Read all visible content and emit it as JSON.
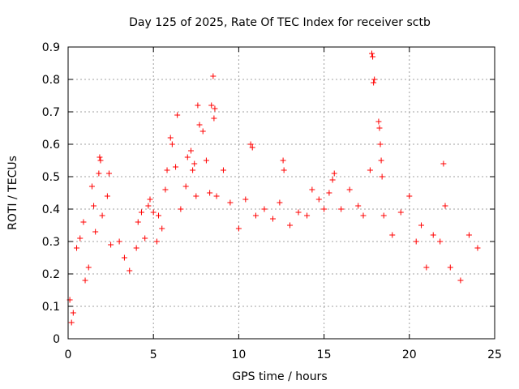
{
  "chart_data": {
    "type": "scatter",
    "title": "Day 125 of 2025, Rate Of TEC Index for receiver sctb",
    "xlabel": "GPS time / hours",
    "ylabel": "ROTI / TECUs",
    "xlim": [
      0,
      25
    ],
    "ylim": [
      0,
      0.9
    ],
    "xticks": [
      "0",
      "5",
      "10",
      "15",
      "20",
      "25"
    ],
    "yticks": [
      "0",
      "0.1",
      "0.2",
      "0.3",
      "0.4",
      "0.5",
      "0.6",
      "0.7",
      "0.8",
      "0.9"
    ],
    "grid": true,
    "marker": "+",
    "color": "#ff0000",
    "series": [
      {
        "points": [
          [
            0.1,
            0.12
          ],
          [
            0.2,
            0.05
          ],
          [
            0.3,
            0.08
          ],
          [
            0.5,
            0.28
          ],
          [
            0.7,
            0.31
          ],
          [
            0.9,
            0.36
          ],
          [
            1.0,
            0.18
          ],
          [
            1.2,
            0.22
          ],
          [
            1.4,
            0.47
          ],
          [
            1.5,
            0.41
          ],
          [
            1.6,
            0.33
          ],
          [
            1.8,
            0.51
          ],
          [
            1.85,
            0.56
          ],
          [
            1.9,
            0.55
          ],
          [
            2.0,
            0.38
          ],
          [
            2.3,
            0.44
          ],
          [
            2.4,
            0.51
          ],
          [
            2.5,
            0.29
          ],
          [
            3.0,
            0.3
          ],
          [
            3.3,
            0.25
          ],
          [
            3.6,
            0.21
          ],
          [
            4.0,
            0.28
          ],
          [
            4.1,
            0.36
          ],
          [
            4.3,
            0.39
          ],
          [
            4.5,
            0.31
          ],
          [
            4.7,
            0.41
          ],
          [
            4.8,
            0.43
          ],
          [
            5.0,
            0.39
          ],
          [
            5.2,
            0.3
          ],
          [
            5.3,
            0.38
          ],
          [
            5.5,
            0.34
          ],
          [
            5.7,
            0.46
          ],
          [
            5.8,
            0.52
          ],
          [
            6.0,
            0.62
          ],
          [
            6.1,
            0.6
          ],
          [
            6.3,
            0.53
          ],
          [
            6.4,
            0.69
          ],
          [
            6.6,
            0.4
          ],
          [
            6.9,
            0.47
          ],
          [
            7.0,
            0.56
          ],
          [
            7.2,
            0.58
          ],
          [
            7.3,
            0.52
          ],
          [
            7.4,
            0.54
          ],
          [
            7.5,
            0.44
          ],
          [
            7.6,
            0.72
          ],
          [
            7.7,
            0.66
          ],
          [
            7.9,
            0.64
          ],
          [
            8.1,
            0.55
          ],
          [
            8.3,
            0.45
          ],
          [
            8.4,
            0.72
          ],
          [
            8.5,
            0.81
          ],
          [
            8.55,
            0.68
          ],
          [
            8.6,
            0.71
          ],
          [
            8.7,
            0.44
          ],
          [
            9.1,
            0.52
          ],
          [
            9.5,
            0.42
          ],
          [
            10.0,
            0.34
          ],
          [
            10.4,
            0.43
          ],
          [
            10.7,
            0.6
          ],
          [
            10.8,
            0.59
          ],
          [
            11.0,
            0.38
          ],
          [
            11.5,
            0.4
          ],
          [
            12.0,
            0.37
          ],
          [
            12.4,
            0.42
          ],
          [
            12.6,
            0.55
          ],
          [
            12.65,
            0.52
          ],
          [
            13.0,
            0.35
          ],
          [
            13.5,
            0.39
          ],
          [
            14.0,
            0.38
          ],
          [
            14.3,
            0.46
          ],
          [
            14.7,
            0.43
          ],
          [
            15.0,
            0.4
          ],
          [
            15.3,
            0.45
          ],
          [
            15.5,
            0.49
          ],
          [
            15.6,
            0.51
          ],
          [
            16.0,
            0.4
          ],
          [
            16.5,
            0.46
          ],
          [
            17.0,
            0.41
          ],
          [
            17.3,
            0.38
          ],
          [
            17.7,
            0.52
          ],
          [
            17.8,
            0.88
          ],
          [
            17.85,
            0.87
          ],
          [
            17.9,
            0.79
          ],
          [
            17.95,
            0.8
          ],
          [
            18.2,
            0.67
          ],
          [
            18.25,
            0.65
          ],
          [
            18.3,
            0.6
          ],
          [
            18.35,
            0.55
          ],
          [
            18.4,
            0.5
          ],
          [
            18.5,
            0.38
          ],
          [
            19.0,
            0.32
          ],
          [
            19.5,
            0.39
          ],
          [
            20.0,
            0.44
          ],
          [
            20.4,
            0.3
          ],
          [
            20.7,
            0.35
          ],
          [
            21.0,
            0.22
          ],
          [
            21.4,
            0.32
          ],
          [
            21.8,
            0.3
          ],
          [
            22.0,
            0.54
          ],
          [
            22.1,
            0.41
          ],
          [
            22.4,
            0.22
          ],
          [
            23.0,
            0.18
          ],
          [
            23.5,
            0.32
          ],
          [
            24.0,
            0.28
          ]
        ]
      }
    ]
  }
}
